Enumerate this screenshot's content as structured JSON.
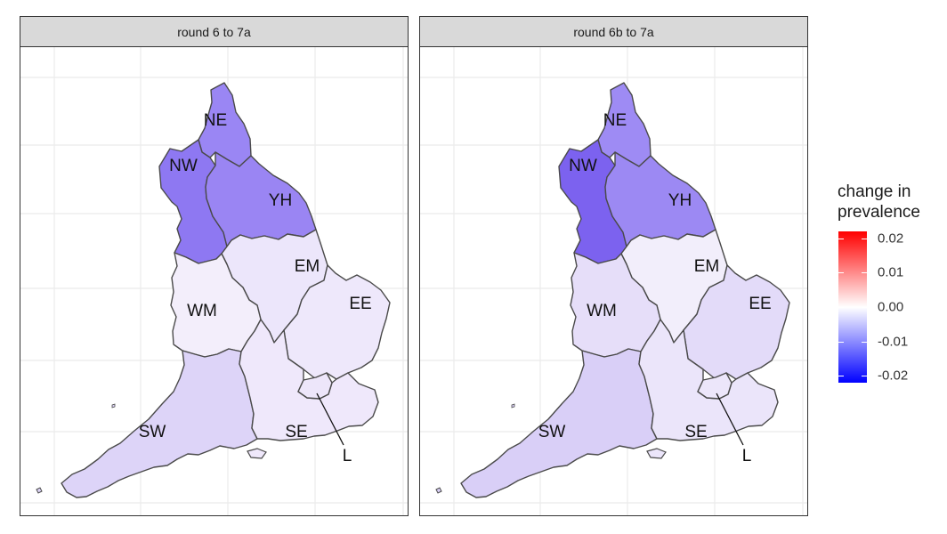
{
  "panels": [
    {
      "title": "round 6 to 7a",
      "regions": [
        {
          "code": "NE",
          "fill": "#9a86f4",
          "change": -0.009
        },
        {
          "code": "NW",
          "fill": "#8e78f2",
          "change": -0.01
        },
        {
          "code": "YH",
          "fill": "#9a85f3",
          "change": -0.009
        },
        {
          "code": "EM",
          "fill": "#ece6fb",
          "change": -0.001
        },
        {
          "code": "WM",
          "fill": "#f3eefb",
          "change": -0.001
        },
        {
          "code": "EE",
          "fill": "#eee8fb",
          "change": -0.001
        },
        {
          "code": "SW",
          "fill": "#ddd4f8",
          "change": -0.003
        },
        {
          "code": "SE",
          "fill": "#efe8fb",
          "change": -0.001
        },
        {
          "code": "L",
          "fill": "#ede6fa",
          "change": -0.001
        }
      ]
    },
    {
      "title": "round 6b to 7a",
      "regions": [
        {
          "code": "NE",
          "fill": "#9e8bf4",
          "change": -0.009
        },
        {
          "code": "NW",
          "fill": "#7c62ef",
          "change": -0.012
        },
        {
          "code": "YH",
          "fill": "#9c89f3",
          "change": -0.009
        },
        {
          "code": "EM",
          "fill": "#f2eefb",
          "change": -0.001
        },
        {
          "code": "WM",
          "fill": "#e6def9",
          "change": -0.002
        },
        {
          "code": "EE",
          "fill": "#e3dbf9",
          "change": -0.002
        },
        {
          "code": "SW",
          "fill": "#d9cff7",
          "change": -0.003
        },
        {
          "code": "SE",
          "fill": "#ebe5fa",
          "change": -0.001
        },
        {
          "code": "L",
          "fill": "#ece6fa",
          "change": -0.001
        }
      ]
    }
  ],
  "legend": {
    "title_line1": "change in",
    "title_line2": "prevalence",
    "ticks": [
      {
        "label": "0.02",
        "value": 0.02
      },
      {
        "label": "0.01",
        "value": 0.01
      },
      {
        "label": "0.00",
        "value": 0.0
      },
      {
        "label": "-0.01",
        "value": -0.01
      },
      {
        "label": "-0.02",
        "value": -0.02
      }
    ],
    "range": [
      -0.022,
      0.022
    ],
    "colors": {
      "high": "#ff0000",
      "mid": "#ffffff",
      "low": "#0000ff"
    }
  }
}
